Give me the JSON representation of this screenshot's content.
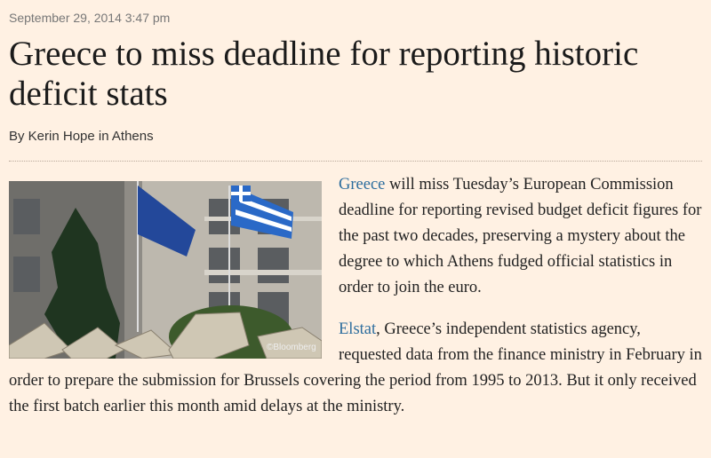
{
  "dateline": "September 29, 2014 3:47 pm",
  "headline": "Greece to miss deadline for reporting historic deficit stats",
  "byline": "By Kerin Hope in Athens",
  "image": {
    "credit": "©Bloomberg"
  },
  "body": [
    {
      "link": "Greece",
      "text": "will miss Tuesday’s European Commission deadline for reporting revised budget deficit figures for the past two decades, preserving a mystery about the degree to which Athens fudged official statistics in order to join the euro."
    },
    {
      "link": "Elstat",
      "text": ", Greece’s independent statistics agency, requested data from the finance ministry in February in order to prepare the submission for Brussels covering the period from 1995 to 2013. But it only received the first batch earlier this month amid delays at the ministry."
    }
  ]
}
